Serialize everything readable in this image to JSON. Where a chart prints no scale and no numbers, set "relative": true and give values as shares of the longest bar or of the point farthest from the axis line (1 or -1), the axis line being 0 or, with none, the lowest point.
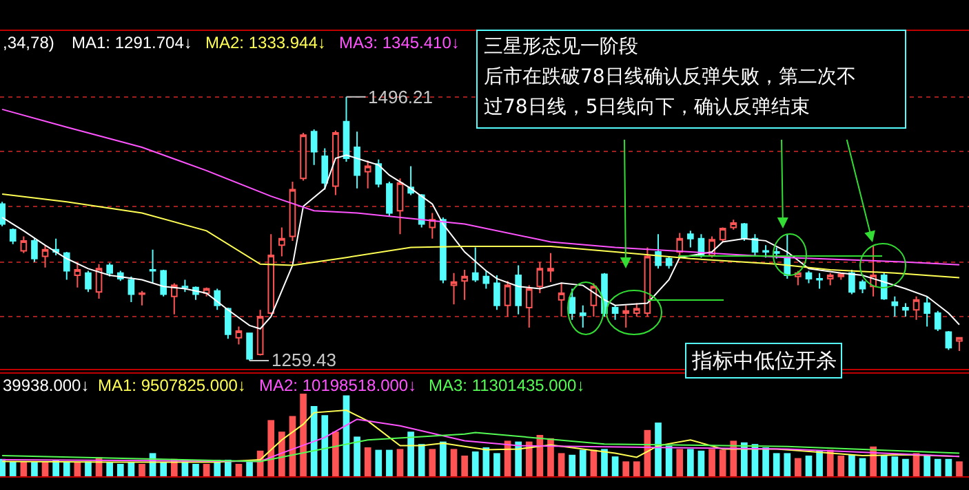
{
  "chart_data": [
    {
      "type": "candlestick",
      "categories": [
        null,
        null,
        null,
        null,
        null,
        null,
        null,
        null,
        null,
        null,
        null,
        null,
        null,
        null,
        null,
        null,
        null,
        null,
        null,
        null,
        null,
        null,
        null,
        null,
        null,
        null,
        null,
        null,
        null,
        null,
        null,
        null,
        null,
        null,
        null,
        null,
        null,
        null,
        null,
        null,
        null,
        null,
        null,
        null,
        null,
        null,
        null,
        null,
        null,
        null,
        null,
        null,
        null,
        null,
        null,
        null,
        null,
        null,
        null,
        null,
        null,
        null,
        null,
        null,
        null,
        null,
        null,
        null,
        null,
        null,
        null,
        null,
        null,
        null,
        null,
        null,
        null,
        null,
        null,
        null,
        null,
        null,
        null,
        null,
        null,
        null,
        null,
        null,
        null,
        null
      ],
      "ylim": [
        1252,
        1556
      ],
      "yticks": [
        {
          "value": 1496,
          "label": null
        },
        {
          "value": 1447,
          "label": null
        },
        {
          "value": 1398,
          "label": null
        },
        {
          "value": 1348,
          "label": null
        },
        {
          "value": 1299,
          "label": null
        }
      ],
      "grid": "y",
      "tick_labels": false,
      "annotations": [
        ",34,78)",
        "三星形态见一阶段",
        "后市在跌破78日线确认反弹失败，第二次不",
        "过78日线，5日线向下，确认反弹结束",
        "1496.21",
        "1259.43",
        "指标中低位开杀"
      ],
      "series": [
        {
          "colors": [
            "#54fcfc",
            "#54fcfc",
            "#ff5454",
            "#54fcfc",
            "#ff5454",
            "#54fcfc",
            "#54fcfc",
            "#ff5454",
            "#54fcfc",
            "#ff5454",
            "#54fcfc",
            "#54fcfc",
            "#54fcfc",
            "#ff5454",
            "#54fcfc",
            "#54fcfc",
            "#ff5454",
            "#54fcfc",
            "#54fcfc",
            "#ff5454",
            "#54fcfc",
            "#54fcfc",
            "#ff5454",
            "#54fcfc",
            "#ff5454",
            "#ff5454",
            "#ff5454",
            "#ff5454",
            "#ff5454",
            "#54fcfc",
            "#54fcfc",
            "#ff5454",
            "#54fcfc",
            "#54fcfc",
            "#ff5454",
            "#54fcfc",
            "#54fcfc",
            "#ff5454",
            "#54fcfc",
            "#54fcfc",
            "#ff5454",
            "#54fcfc",
            "#ff5454",
            "#ff5454",
            "#54fcfc",
            "#54fcfc",
            "#54fcfc",
            "#ff5454",
            "#54fcfc",
            "#ff5454",
            "#ff5454",
            "#ff5454",
            "#ff5454",
            "#54fcfc",
            "#54fcfc",
            "#ff5454",
            "#54fcfc",
            "#54fcfc",
            "#ff5454",
            "#ff5454",
            "#ff5454",
            "#54fcfc",
            "#54fcfc",
            "#ff5454",
            "#54fcfc",
            "#54fcfc",
            "#ff5454",
            "#ff5454",
            "#ff5454",
            "#54fcfc",
            "#54fcfc",
            "#54fcfc",
            "#54fcfc",
            "#54fcfc",
            "#ff5454",
            "#54fcfc",
            "#54fcfc",
            "#ff5454",
            "#ff5454",
            "#54fcfc",
            "#54fcfc",
            "#ff5454",
            "#54fcfc",
            "#54fcfc",
            "#54fcfc",
            "#ff5454",
            "#54fcfc",
            "#54fcfc",
            "#54fcfc",
            "#ff5454"
          ],
          "ohlc": [
            [
              1400,
              1402,
              1380,
              1382
            ],
            [
              1377,
              1378,
              1364,
              1367
            ],
            [
              1358,
              1371,
              1356,
              1367
            ],
            [
              1367,
              1369,
              1348,
              1351
            ],
            [
              1353,
              1363,
              1343,
              1359
            ],
            [
              1359,
              1369,
              1354,
              1357
            ],
            [
              1356,
              1357,
              1332,
              1340
            ],
            [
              1336,
              1347,
              1325,
              1341
            ],
            [
              1338,
              1340,
              1321,
              1324
            ],
            [
              1321,
              1346,
              1315,
              1342
            ],
            [
              1345,
              1347,
              1335,
              1338
            ],
            [
              1338,
              1340,
              1331,
              1333
            ],
            [
              1332,
              1335,
              1312,
              1319
            ],
            [
              1319,
              1322,
              1309,
              1320
            ],
            [
              1341,
              1359,
              1329,
              1340
            ],
            [
              1340,
              1341,
              1317,
              1319
            ],
            [
              1317,
              1329,
              1301,
              1327
            ],
            [
              1326,
              1332,
              1321,
              1325
            ],
            [
              1325,
              1326,
              1314,
              1319
            ],
            [
              1320,
              1325,
              1317,
              1324
            ],
            [
              1322,
              1324,
              1305,
              1309
            ],
            [
              1306,
              1307,
              1279,
              1283
            ],
            [
              1280,
              1290,
              1274,
              1286
            ],
            [
              1284,
              1284,
              1259.43,
              1261
            ],
            [
              1265,
              1305,
              1264,
              1299
            ],
            [
              1302,
              1373,
              1301,
              1354
            ],
            [
              1363,
              1379,
              1353,
              1369
            ],
            [
              1371,
              1420,
              1367,
              1413
            ],
            [
              1423,
              1464,
              1421,
              1462
            ],
            [
              1465,
              1467,
              1435,
              1447
            ],
            [
              1443,
              1450,
              1413,
              1419
            ],
            [
              1416,
              1466,
              1408,
              1464
            ],
            [
              1474,
              1496.21,
              1438,
              1441
            ],
            [
              1451,
              1465,
              1414,
              1426
            ],
            [
              1429,
              1439,
              1414,
              1434
            ],
            [
              1436,
              1440,
              1415,
              1418
            ],
            [
              1418,
              1420,
              1389,
              1392
            ],
            [
              1394,
              1423,
              1373,
              1419
            ],
            [
              1415,
              1434,
              1408,
              1410
            ],
            [
              1408,
              1409,
              1379,
              1382
            ],
            [
              1379,
              1392,
              1369,
              1386
            ],
            [
              1386,
              1388,
              1329,
              1332
            ],
            [
              1327,
              1338,
              1310,
              1330
            ],
            [
              1331,
              1341,
              1314,
              1335
            ],
            [
              1338,
              1361,
              1330,
              1332
            ],
            [
              1335,
              1340,
              1324,
              1329
            ],
            [
              1329,
              1336,
              1305,
              1309
            ],
            [
              1309,
              1331,
              1299,
              1327
            ],
            [
              1336,
              1345,
              1301,
              1309
            ],
            [
              1307,
              1327,
              1289,
              1324
            ],
            [
              1326,
              1348,
              1320,
              1342
            ],
            [
              1340,
              1356,
              1330,
              1342
            ],
            [
              1314,
              1329,
              1299,
              1320
            ],
            [
              1316,
              1324,
              1296,
              1302
            ],
            [
              1302,
              1309,
              1289,
              1300
            ],
            [
              1309,
              1329,
              1299,
              1326
            ],
            [
              1337,
              1338,
              1299,
              1302
            ],
            [
              1307,
              1309,
              1296,
              1302
            ],
            [
              1302,
              1309,
              1289,
              1304
            ],
            [
              1302,
              1311,
              1299,
              1306
            ],
            [
              1302,
              1361,
              1299,
              1353
            ],
            [
              1357,
              1373,
              1342,
              1345
            ],
            [
              1351,
              1353,
              1342,
              1345
            ],
            [
              1357,
              1374,
              1354,
              1369
            ],
            [
              1373,
              1376,
              1361,
              1369
            ],
            [
              1369,
              1373,
              1352,
              1354
            ],
            [
              1354,
              1371,
              1352,
              1368
            ],
            [
              1368,
              1379,
              1366,
              1378
            ],
            [
              1379,
              1386,
              1377,
              1383
            ],
            [
              1382,
              1383,
              1367,
              1369
            ],
            [
              1369,
              1373,
              1354,
              1357
            ],
            [
              1358,
              1363,
              1352,
              1357
            ],
            [
              1357,
              1361,
              1351,
              1356
            ],
            [
              1352,
              1373,
              1333,
              1336
            ],
            [
              1335,
              1340,
              1327,
              1338
            ],
            [
              1338,
              1340,
              1329,
              1333
            ],
            [
              1333,
              1338,
              1324,
              1332
            ],
            [
              1333,
              1338,
              1327,
              1336
            ],
            [
              1335,
              1338,
              1332,
              1337
            ],
            [
              1338,
              1341,
              1319,
              1321
            ],
            [
              1330,
              1332,
              1320,
              1324
            ],
            [
              1326,
              1363,
              1317,
              1336
            ],
            [
              1336,
              1338,
              1314,
              1315
            ],
            [
              1312,
              1317,
              1299,
              1309
            ],
            [
              1307,
              1311,
              1299,
              1305
            ],
            [
              1305,
              1317,
              1296,
              1314
            ],
            [
              1311,
              1317,
              1290,
              1302
            ],
            [
              1302,
              1304,
              1286,
              1288
            ],
            [
              1285,
              1286,
              1269,
              1271
            ],
            [
              1277,
              1280,
              1268,
              1280
            ]
          ]
        },
        {
          "type": "line",
          "name": "MA1: 1291.704↓",
          "color": "#ffffff",
          "values": [
            1388,
            null,
            1376,
            null,
            1363,
            null,
            1351,
            null,
            1342,
            null,
            1336,
            null,
            null,
            1332,
            null,
            1326,
            null,
            1324,
            null,
            1320,
            null,
            1305,
            null,
            1291,
            1288,
            1299,
            null,
            1345,
            1398,
            null,
            1414,
            1441,
            1444,
            null,
            1438,
            1435,
            1426,
            null,
            1414,
            null,
            1400,
            1382,
            null,
            1357,
            null,
            1340,
            1333,
            null,
            1326,
            null,
            1324,
            null,
            1329,
            null,
            1327,
            null,
            1314,
            1309,
            null,
            null,
            1311,
            null,
            1332,
            1352,
            null,
            null,
            1357,
            1366,
            null,
            1369,
            null,
            1367,
            null,
            1357,
            null,
            1342,
            null,
            null,
            1338,
            null,
            1336,
            null,
            1330,
            null,
            1324,
            null,
            1317,
            null,
            1302,
            1291.704
          ]
        },
        {
          "type": "line",
          "name": "MA2: 1333.944↓",
          "color": "#ffff54",
          "values": [
            1409,
            null,
            null,
            null,
            null,
            null,
            1402,
            null,
            null,
            null,
            null,
            null,
            null,
            1392,
            null,
            null,
            null,
            null,
            null,
            1376,
            null,
            null,
            null,
            null,
            1346,
            null,
            null,
            1345,
            null,
            null,
            null,
            null,
            1352,
            null,
            null,
            null,
            null,
            null,
            1361,
            null,
            null,
            null,
            null,
            1362,
            null,
            null,
            null,
            null,
            null,
            null,
            null,
            1362,
            null,
            null,
            null,
            null,
            null,
            1357,
            null,
            null,
            null,
            null,
            null,
            null,
            1351,
            null,
            null,
            null,
            null,
            null,
            null,
            null,
            1346,
            null,
            null,
            null,
            null,
            1341,
            null,
            null,
            null,
            null,
            null,
            1338,
            null,
            null,
            null,
            null,
            null,
            1333.944
          ]
        },
        {
          "type": "line",
          "name": "MA3: 1345.410↓",
          "color": "#ff54ff",
          "values": [
            1485,
            null,
            null,
            null,
            null,
            null,
            1469,
            null,
            null,
            null,
            null,
            null,
            null,
            1451,
            null,
            null,
            null,
            null,
            null,
            1430,
            null,
            null,
            null,
            null,
            null,
            1407,
            null,
            null,
            null,
            1394,
            null,
            null,
            null,
            1392,
            null,
            null,
            null,
            null,
            1387,
            null,
            null,
            null,
            null,
            1382,
            null,
            null,
            null,
            null,
            null,
            null,
            null,
            1366,
            null,
            null,
            null,
            null,
            null,
            1361,
            null,
            null,
            null,
            null,
            null,
            null,
            1357,
            null,
            null,
            null,
            null,
            null,
            null,
            null,
            null,
            1352,
            null,
            null,
            null,
            null,
            null,
            null,
            null,
            null,
            null,
            null,
            1348,
            null,
            null,
            null,
            null,
            1345.41
          ]
        }
      ]
    },
    {
      "type": "bar",
      "relative": true,
      "categories": [
        null,
        null,
        null,
        null,
        null,
        null,
        null,
        null,
        null,
        null,
        null,
        null,
        null,
        null,
        null,
        null,
        null,
        null,
        null,
        null,
        null,
        null,
        null,
        null,
        null,
        null,
        null,
        null,
        null,
        null,
        null,
        null,
        null,
        null,
        null,
        null,
        null,
        null,
        null,
        null,
        null,
        null,
        null,
        null,
        null,
        null,
        null,
        null,
        null,
        null,
        null,
        null,
        null,
        null,
        null,
        null,
        null,
        null,
        null,
        null,
        null,
        null,
        null,
        null,
        null,
        null,
        null,
        null,
        null,
        null,
        null,
        null,
        null,
        null,
        null,
        null,
        null,
        null,
        null,
        null,
        null,
        null,
        null,
        null,
        null,
        null,
        null,
        null,
        null,
        null
      ],
      "tick_labels": false,
      "annotations": [
        "39938.000↓"
      ],
      "series": [
        {
          "colors": [
            "#54fcfc",
            "#54fcfc",
            "#ff5454",
            "#54fcfc",
            "#ff5454",
            "#54fcfc",
            "#54fcfc",
            "#ff5454",
            "#54fcfc",
            "#ff5454",
            "#54fcfc",
            "#54fcfc",
            "#54fcfc",
            "#ff5454",
            "#54fcfc",
            "#54fcfc",
            "#ff5454",
            "#54fcfc",
            "#54fcfc",
            "#ff5454",
            "#54fcfc",
            "#54fcfc",
            "#ff5454",
            "#54fcfc",
            "#ff5454",
            "#ff5454",
            "#ff5454",
            "#ff5454",
            "#ff5454",
            "#54fcfc",
            "#54fcfc",
            "#ff5454",
            "#54fcfc",
            "#54fcfc",
            "#ff5454",
            "#54fcfc",
            "#54fcfc",
            "#ff5454",
            "#54fcfc",
            "#54fcfc",
            "#ff5454",
            "#54fcfc",
            "#ff5454",
            "#ff5454",
            "#54fcfc",
            "#54fcfc",
            "#54fcfc",
            "#ff5454",
            "#54fcfc",
            "#ff5454",
            "#ff5454",
            "#ff5454",
            "#ff5454",
            "#54fcfc",
            "#54fcfc",
            "#ff5454",
            "#54fcfc",
            "#54fcfc",
            "#ff5454",
            "#ff5454",
            "#ff5454",
            "#54fcfc",
            "#54fcfc",
            "#ff5454",
            "#54fcfc",
            "#54fcfc",
            "#ff5454",
            "#ff5454",
            "#ff5454",
            "#54fcfc",
            "#54fcfc",
            "#54fcfc",
            "#54fcfc",
            "#54fcfc",
            "#ff5454",
            "#54fcfc",
            "#54fcfc",
            "#ff5454",
            "#ff5454",
            "#54fcfc",
            "#54fcfc",
            "#ff5454",
            "#54fcfc",
            "#54fcfc",
            "#54fcfc",
            "#ff5454",
            "#54fcfc",
            "#54fcfc",
            "#54fcfc",
            "#ff5454"
          ],
          "values": [
            0.21,
            0.18,
            0.18,
            0.18,
            0.18,
            0.2,
            0.18,
            0.17,
            0.18,
            0.23,
            0.17,
            0.15,
            0.17,
            0.15,
            0.28,
            0.17,
            0.21,
            0.18,
            0.15,
            0.15,
            0.2,
            0.2,
            0.15,
            0.18,
            0.31,
            0.68,
            0.54,
            0.73,
            1,
            0.85,
            0.74,
            0.54,
            0.98,
            0.48,
            0.35,
            0.32,
            0.32,
            0.33,
            0.54,
            0.39,
            0.33,
            0.42,
            0.33,
            0.25,
            0.3,
            0.35,
            0.28,
            0.43,
            0.42,
            0.42,
            0.5,
            0.46,
            0.28,
            0.26,
            0.32,
            0.32,
            0.33,
            0.24,
            0.18,
            0.18,
            0.56,
            0.65,
            0.37,
            0.33,
            0.33,
            0.31,
            0.33,
            0.32,
            0.43,
            0.41,
            0.39,
            0.35,
            0.28,
            0.28,
            0.22,
            0.25,
            0.31,
            0.32,
            0.25,
            0.26,
            0.22,
            0.36,
            0.25,
            0.24,
            0.21,
            0.28,
            0.25,
            0.21,
            0.21,
            0.18
          ]
        },
        {
          "type": "line",
          "name": "MA1: 9507825.000↓",
          "color": "#ffff54",
          "values": [
            0.18,
            null,
            null,
            null,
            null,
            null,
            null,
            null,
            null,
            null,
            0.17,
            null,
            null,
            null,
            null,
            null,
            null,
            null,
            null,
            null,
            0.17,
            null,
            null,
            null,
            0.2,
            null,
            0.44,
            null,
            0.63,
            0.77,
            null,
            null,
            0.8,
            null,
            0.67,
            null,
            null,
            0.37,
            null,
            0.37,
            null,
            0.4,
            null,
            null,
            null,
            0.32,
            null,
            null,
            0.33,
            null,
            null,
            0.38,
            null,
            null,
            null,
            null,
            null,
            0.28,
            null,
            0.23,
            null,
            0.37,
            null,
            null,
            0.44,
            null,
            null,
            0.33,
            null,
            null,
            null,
            null,
            0.33,
            null,
            0.31,
            null,
            null,
            null,
            null,
            null,
            0.25,
            null,
            null,
            null,
            0.26,
            null,
            null,
            null,
            null,
            0.24
          ]
        },
        {
          "type": "line",
          "name": "MA2: 10198518.000↓",
          "color": "#ff54ff",
          "values": [
            0.2,
            null,
            null,
            null,
            null,
            null,
            null,
            null,
            null,
            null,
            null,
            null,
            null,
            null,
            null,
            null,
            null,
            null,
            null,
            null,
            null,
            null,
            null,
            null,
            0.18,
            null,
            0.28,
            null,
            null,
            null,
            0.47,
            null,
            null,
            0.69,
            null,
            null,
            null,
            0.61,
            null,
            null,
            null,
            null,
            null,
            0.43,
            null,
            null,
            null,
            null,
            0.37,
            null,
            null,
            null,
            null,
            null,
            null,
            null,
            null,
            null,
            null,
            null,
            0.35,
            null,
            null,
            null,
            null,
            null,
            null,
            null,
            null,
            null,
            null,
            null,
            null,
            0.33,
            null,
            null,
            null,
            null,
            null,
            null,
            null,
            null,
            null,
            null,
            null,
            null,
            null,
            null,
            null,
            0.24
          ]
        },
        {
          "type": "line",
          "name": "MA3: 11301435.000↓",
          "color": "#54fc54",
          "values": [
            0.25,
            null,
            null,
            null,
            null,
            null,
            null,
            null,
            null,
            null,
            null,
            null,
            null,
            null,
            null,
            null,
            null,
            null,
            null,
            null,
            null,
            null,
            null,
            null,
            0.18,
            null,
            null,
            null,
            null,
            null,
            null,
            null,
            null,
            null,
            0.44,
            null,
            null,
            null,
            null,
            null,
            null,
            null,
            null,
            0.51,
            0.53,
            null,
            null,
            null,
            null,
            null,
            null,
            null,
            null,
            null,
            null,
            null,
            0.39,
            null,
            null,
            null,
            null,
            null,
            null,
            null,
            null,
            null,
            null,
            null,
            null,
            null,
            null,
            null,
            null,
            0.36,
            null,
            null,
            null,
            null,
            null,
            null,
            null,
            null,
            null,
            null,
            null,
            null,
            null,
            null,
            null,
            0.28
          ]
        }
      ]
    }
  ]
}
